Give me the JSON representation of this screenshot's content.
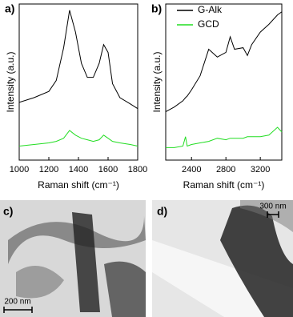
{
  "chart_data": [
    {
      "type": "line",
      "panel_label": "a)",
      "x_label": "Raman shift (cm⁻¹)",
      "y_label": "Intensity (a.u.)",
      "x": [
        1000,
        1100,
        1200,
        1250,
        1300,
        1340,
        1380,
        1420,
        1460,
        1500,
        1540,
        1570,
        1600,
        1630,
        1680,
        1750,
        1800
      ],
      "series": [
        {
          "color": "#000000",
          "values": [
            37,
            40,
            44,
            51,
            72,
            96,
            82,
            62,
            53,
            53,
            62,
            74,
            69,
            49,
            40,
            36,
            33
          ]
        },
        {
          "color": "#22dd22",
          "values": [
            9,
            10,
            11,
            12,
            14,
            19,
            16,
            14,
            13,
            12,
            13,
            16,
            14,
            12,
            11,
            10,
            9
          ]
        }
      ],
      "xlim": [
        1000,
        1800
      ],
      "xticks": [
        1000,
        1200,
        1400,
        1600,
        1800
      ],
      "ylim": [
        0,
        100
      ]
    },
    {
      "type": "line",
      "panel_label": "b)",
      "x_label": "Raman shift (cm⁻¹)",
      "y_label": "Intensity (a.u.)",
      "x": [
        2100,
        2200,
        2300,
        2330,
        2350,
        2400,
        2500,
        2600,
        2700,
        2800,
        2850,
        2900,
        3000,
        3050,
        3100,
        3200,
        3300,
        3400,
        3450
      ],
      "series": [
        {
          "name": "G-Alk",
          "color": "#000000",
          "values": [
            31,
            34,
            38,
            40,
            41,
            45,
            54,
            71,
            66,
            69,
            79,
            71,
            72,
            67,
            74,
            82,
            87,
            93,
            95
          ]
        },
        {
          "name": "GCD",
          "color": "#22dd22",
          "values": [
            8,
            8,
            9,
            15,
            9,
            10,
            11,
            12,
            14,
            13,
            14,
            14,
            14,
            15,
            15,
            15,
            16,
            21,
            18
          ]
        }
      ],
      "xlim": [
        2100,
        3450
      ],
      "xticks": [
        2400,
        2800,
        3200
      ],
      "ylim": [
        0,
        100
      ],
      "legend": "upper left"
    }
  ],
  "images": [
    {
      "panel_label": "c)",
      "scale_bar": "200 nm"
    },
    {
      "panel_label": "d)",
      "scale_bar": "300 nm"
    }
  ]
}
